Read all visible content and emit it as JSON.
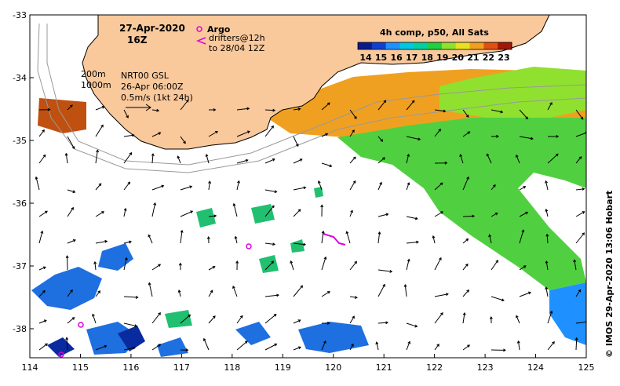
{
  "header": {
    "date": "27-Apr-2020",
    "time": "16Z"
  },
  "legend": {
    "argo_label": "Argo",
    "drifters_line1": "drifters@12h",
    "drifters_line2": "to 28/04 12Z",
    "colorbar_title": "4h comp, p50, All Sats",
    "colorbar_ticks": [
      "14",
      "15",
      "16",
      "17",
      "18",
      "19",
      "20",
      "21",
      "22",
      "23"
    ],
    "colorbar_colors": [
      "#0a1a8c",
      "#1040d0",
      "#1e90ff",
      "#00c8e0",
      "#00d0a0",
      "#20d040",
      "#90e030",
      "#e8e020",
      "#f0a020",
      "#e05010",
      "#a01808"
    ]
  },
  "annotations": {
    "depth_200": "200m",
    "depth_1000": "1000m",
    "product": "NRT00 GSL",
    "product_time": "26-Apr 06:00Z",
    "velocity_scale": "0.5m/s (1kt 24h)"
  },
  "credit": "© IMOS 29-Apr-2020 13:06 Hobart",
  "map": {
    "lon_ticks": [
      "114",
      "115",
      "116",
      "117",
      "118",
      "119",
      "120",
      "121",
      "122",
      "123",
      "124",
      "125"
    ],
    "lat_ticks": [
      "-33",
      "-34",
      "-35",
      "-36",
      "-37",
      "-38"
    ],
    "land_color": "#f9c89b",
    "argo_color": "#dd00dd"
  }
}
